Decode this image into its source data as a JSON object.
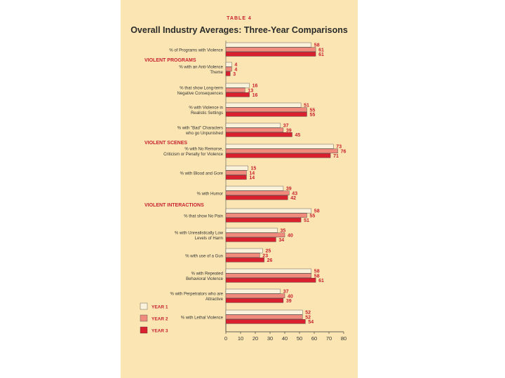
{
  "chart_data": {
    "type": "bar",
    "orientation": "horizontal",
    "table_number": "TABLE 4",
    "title": "Overall Industry Averages: Three-Year Comparisons",
    "xlim": [
      0,
      80
    ],
    "xticks": [
      "0",
      "10",
      "20",
      "30",
      "40",
      "50",
      "60",
      "70",
      "80"
    ],
    "series": [
      {
        "name": "YEAR 1",
        "color": "#fbf2dc"
      },
      {
        "name": "YEAR 2",
        "color": "#ef8a7c"
      },
      {
        "name": "YEAR 3",
        "color": "#d8202e"
      }
    ],
    "sections": [
      {
        "label": "VIOLENT PROGRAMS",
        "after_index": 0
      },
      {
        "label": "VIOLENT SCENES",
        "after_index": 4
      },
      {
        "label": "VIOLENT INTERACTIONS",
        "after_index": 7
      }
    ],
    "categories": [
      {
        "label": [
          "% of Programs with Violence"
        ],
        "values": [
          58,
          61,
          61
        ]
      },
      {
        "label": [
          "% with an Anti-Violence",
          "Theme"
        ],
        "values": [
          4,
          4,
          3
        ]
      },
      {
        "label": [
          "% that show Long-term",
          "Negative Consequences"
        ],
        "values": [
          16,
          13,
          16
        ]
      },
      {
        "label": [
          "% with Violence in",
          "Realistic Settings"
        ],
        "values": [
          51,
          55,
          55
        ]
      },
      {
        "label": [
          "% with \"Bad\" Characters",
          "who go Unpunished"
        ],
        "values": [
          37,
          39,
          45
        ]
      },
      {
        "label": [
          "% with No Remorse,",
          "Criticism or Penalty for Violence"
        ],
        "values": [
          73,
          76,
          71
        ]
      },
      {
        "label": [
          "% with Blood and Gore"
        ],
        "values": [
          15,
          14,
          14
        ]
      },
      {
        "label": [
          "% with Humor"
        ],
        "values": [
          39,
          43,
          42
        ]
      },
      {
        "label": [
          "% that show No Pain"
        ],
        "values": [
          58,
          55,
          51
        ]
      },
      {
        "label": [
          "% with Unrealistically Low",
          "Levels of Harm"
        ],
        "values": [
          35,
          40,
          34
        ]
      },
      {
        "label": [
          "% with use of a Gun"
        ],
        "values": [
          25,
          23,
          26
        ]
      },
      {
        "label": [
          "% with Repeated",
          "Behavioral Violence"
        ],
        "values": [
          58,
          58,
          61
        ]
      },
      {
        "label": [
          "% with Perpetrators who are",
          "Attractive"
        ],
        "values": [
          37,
          40,
          39
        ]
      },
      {
        "label": [
          "% with Lethal Violence"
        ],
        "values": [
          52,
          52,
          54
        ]
      }
    ]
  }
}
